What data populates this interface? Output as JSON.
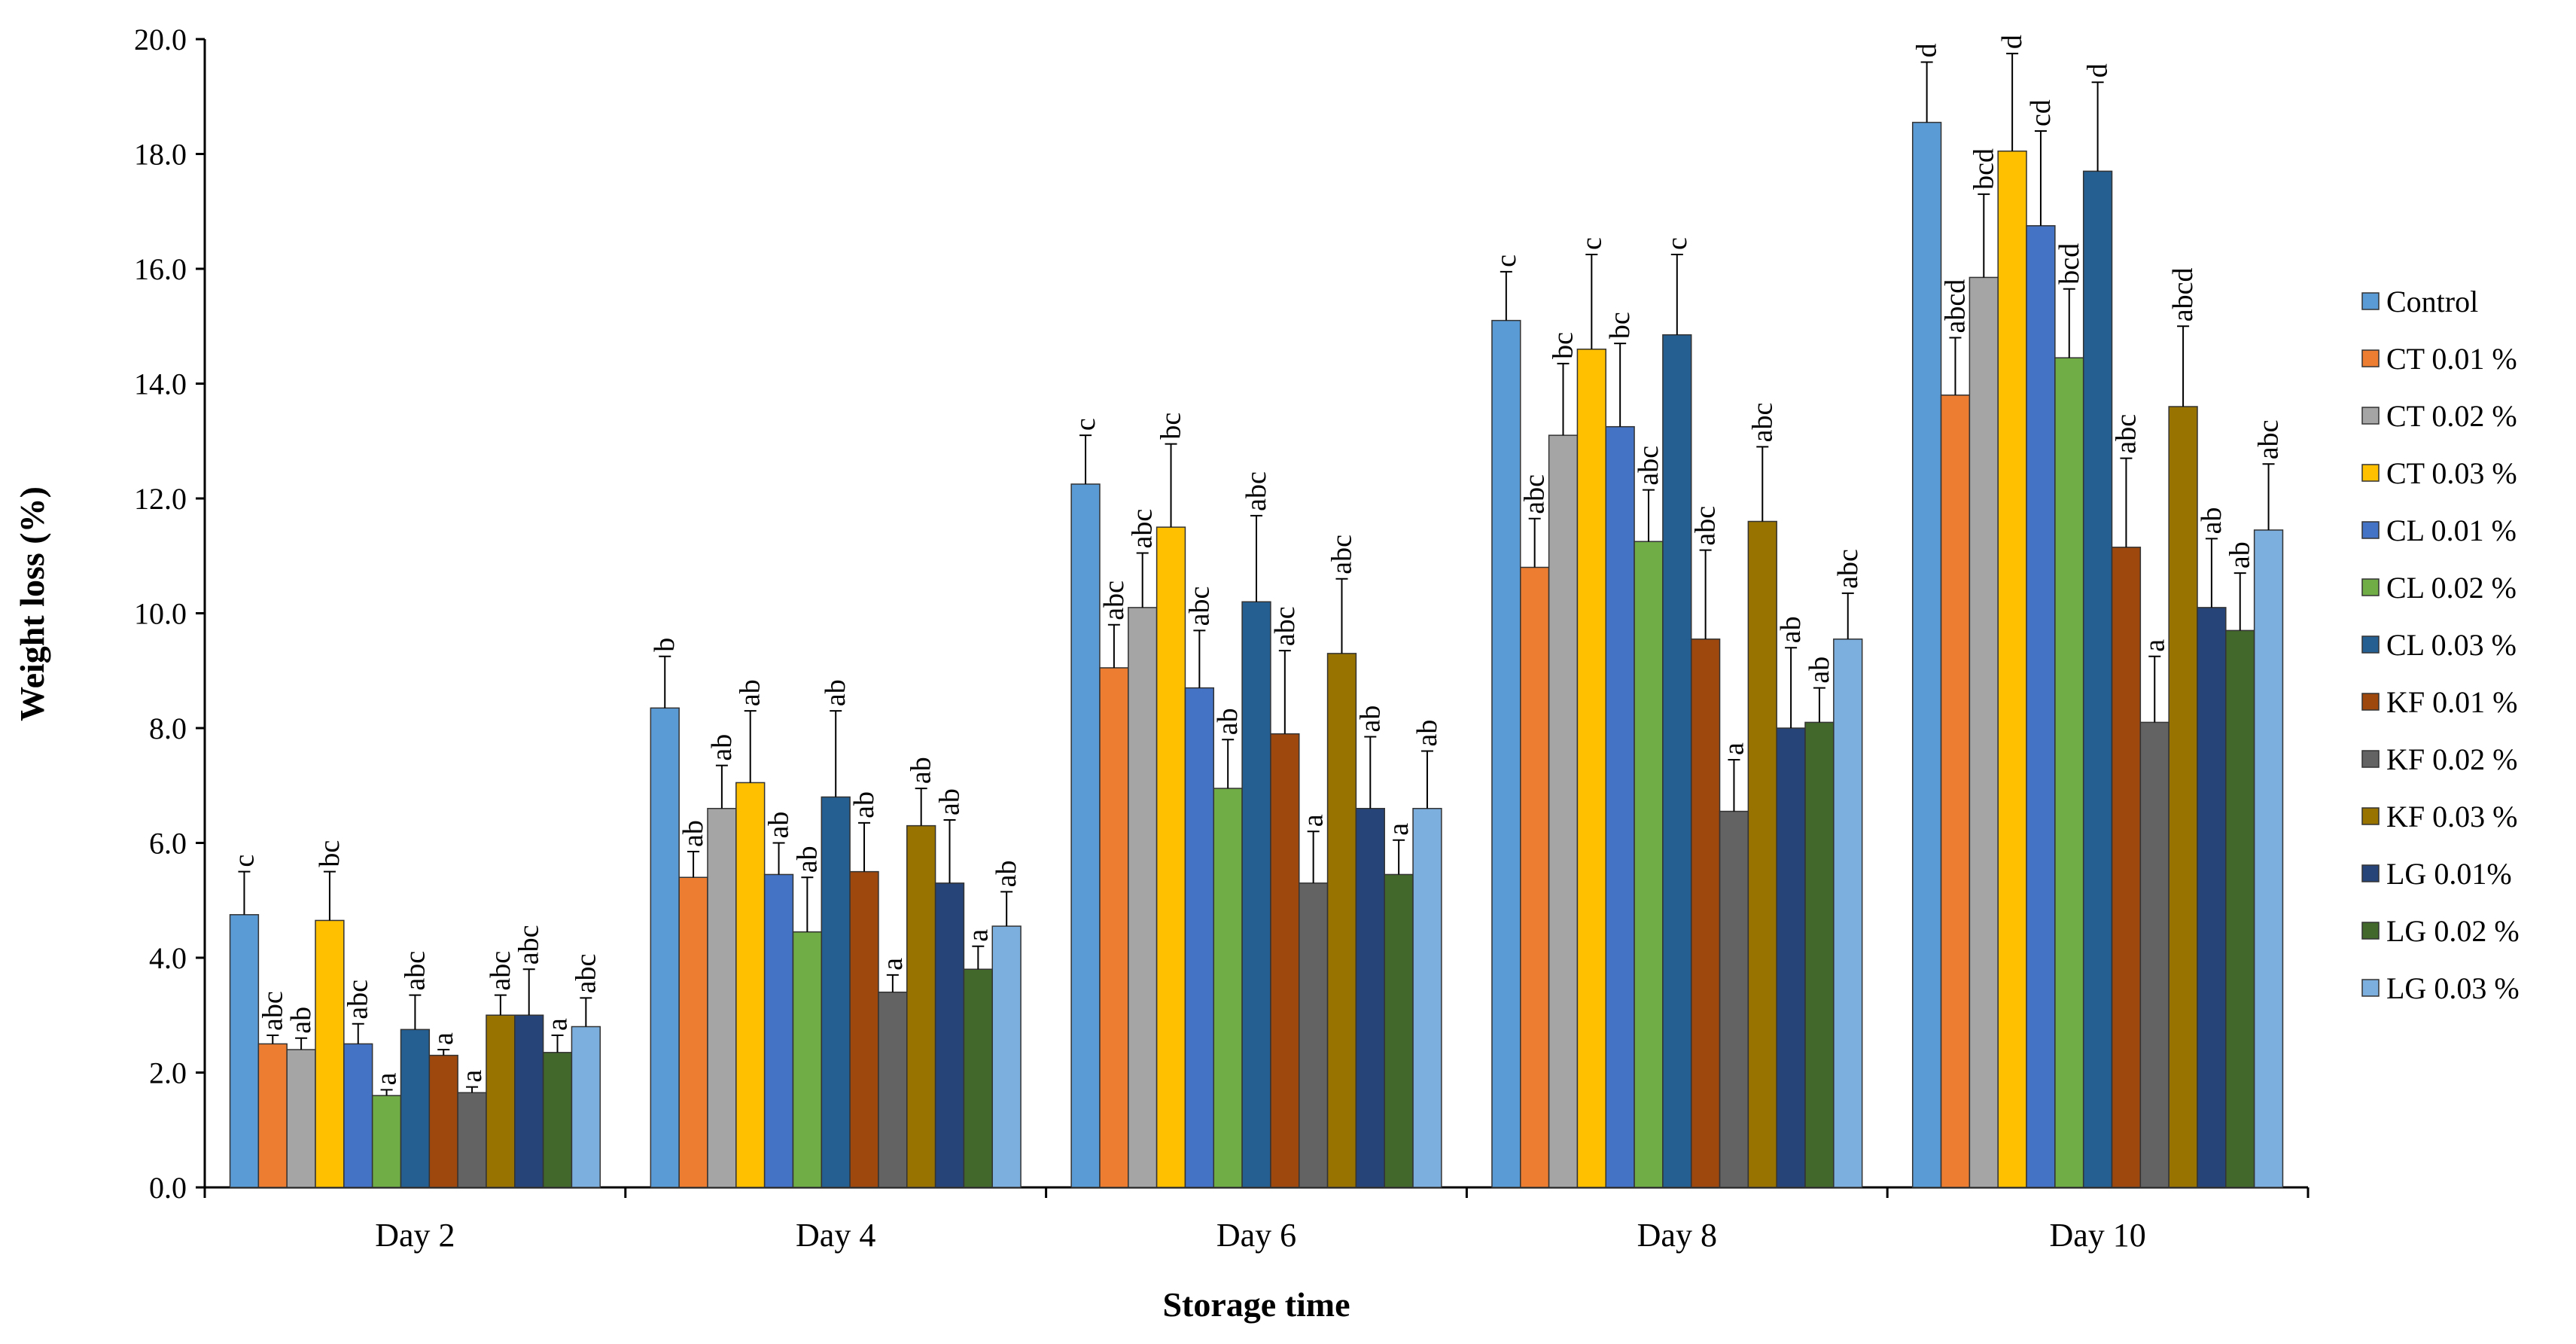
{
  "chart_data": {
    "type": "bar",
    "title": "",
    "xlabel": "Storage time",
    "ylabel": "Weight loss (%)",
    "ylim": [
      0,
      20
    ],
    "ytick_step": 2,
    "ytick_labels": [
      "0.0",
      "2.0",
      "4.0",
      "6.0",
      "8.0",
      "10.0",
      "12.0",
      "14.0",
      "16.0",
      "18.0",
      "20.0"
    ],
    "grid": false,
    "legend_position": "right",
    "categories": [
      "Day 2",
      "Day 4",
      "Day 6",
      "Day 8",
      "Day 10"
    ],
    "series": [
      {
        "name": "Control",
        "color": "#5B9BD5",
        "values": [
          4.75,
          8.35,
          12.25,
          15.1,
          18.55
        ],
        "errors": [
          0.75,
          0.9,
          0.85,
          0.85,
          1.05
        ],
        "labels": [
          "c",
          "b",
          "c",
          "c",
          "d"
        ]
      },
      {
        "name": "CT 0.01 %",
        "color": "#ED7D31",
        "values": [
          2.5,
          5.4,
          9.05,
          10.8,
          13.8
        ],
        "errors": [
          0.15,
          0.45,
          0.75,
          0.85,
          1.0
        ],
        "labels": [
          "abc",
          "ab",
          "abc",
          "abc",
          "abcd"
        ]
      },
      {
        "name": "CT 0.02 %",
        "color": "#A5A5A5",
        "values": [
          2.4,
          6.6,
          10.1,
          13.1,
          15.85
        ],
        "errors": [
          0.2,
          0.75,
          0.95,
          1.25,
          1.45
        ],
        "labels": [
          "ab",
          "ab",
          "abc",
          "bc",
          "bcd"
        ]
      },
      {
        "name": "CT 0.03 %",
        "color": "#FFC000",
        "values": [
          4.65,
          7.05,
          11.5,
          14.6,
          18.05
        ],
        "errors": [
          0.85,
          1.25,
          1.45,
          1.65,
          1.7
        ],
        "labels": [
          "bc",
          "ab",
          "bc",
          "c",
          "d"
        ]
      },
      {
        "name": "CL 0.01 %",
        "color": "#4472C4",
        "values": [
          2.5,
          5.45,
          8.7,
          13.25,
          16.75
        ],
        "errors": [
          0.35,
          0.55,
          1.0,
          1.45,
          1.65
        ],
        "labels": [
          "abc",
          "ab",
          "abc",
          "bc",
          "cd"
        ]
      },
      {
        "name": "CL 0.02 %",
        "color": "#70AD47",
        "values": [
          1.6,
          4.45,
          6.95,
          11.25,
          14.45
        ],
        "errors": [
          0.1,
          0.95,
          0.85,
          0.9,
          1.2
        ],
        "labels": [
          "a",
          "ab",
          "ab",
          "abc",
          "bcd"
        ]
      },
      {
        "name": "CL 0.03 %",
        "color": "#255E91",
        "values": [
          2.75,
          6.8,
          10.2,
          14.85,
          17.7
        ],
        "errors": [
          0.6,
          1.5,
          1.5,
          1.4,
          1.55
        ],
        "labels": [
          "abc",
          "ab",
          "abc",
          "c",
          "d"
        ]
      },
      {
        "name": "KF 0.01 %",
        "color": "#9E480E",
        "values": [
          2.3,
          5.5,
          7.9,
          9.55,
          11.15
        ],
        "errors": [
          0.1,
          0.85,
          1.45,
          1.55,
          1.55
        ],
        "labels": [
          "a",
          "ab",
          "abc",
          "abc",
          "abc"
        ]
      },
      {
        "name": "KF 0.02 %",
        "color": "#636363",
        "values": [
          1.65,
          3.4,
          5.3,
          6.55,
          8.1
        ],
        "errors": [
          0.1,
          0.3,
          0.9,
          0.9,
          1.15
        ],
        "labels": [
          "a",
          "a",
          "a",
          "a",
          "a"
        ]
      },
      {
        "name": "KF 0.03 %",
        "color": "#997300",
        "values": [
          3.0,
          6.3,
          9.3,
          11.6,
          13.6
        ],
        "errors": [
          0.35,
          0.65,
          1.3,
          1.3,
          1.4
        ],
        "labels": [
          "abc",
          "ab",
          "abc",
          "abc",
          "abcd"
        ]
      },
      {
        "name": "LG 0.01%",
        "color": "#264478",
        "values": [
          3.0,
          5.3,
          6.6,
          8.0,
          10.1
        ],
        "errors": [
          0.8,
          1.1,
          1.25,
          1.4,
          1.2
        ],
        "labels": [
          "abc",
          "ab",
          "ab",
          "ab",
          "ab"
        ]
      },
      {
        "name": "LG 0.02 %",
        "color": "#43682B",
        "values": [
          2.35,
          3.8,
          5.45,
          8.1,
          9.7
        ],
        "errors": [
          0.3,
          0.4,
          0.6,
          0.6,
          1.0
        ],
        "labels": [
          "a",
          "a",
          "a",
          "ab",
          "ab"
        ]
      },
      {
        "name": "LG 0.03 %",
        "color": "#7CAFDD",
        "values": [
          2.8,
          4.55,
          6.6,
          9.55,
          11.45
        ],
        "errors": [
          0.5,
          0.6,
          1.0,
          0.8,
          1.15
        ],
        "labels": [
          "abc",
          "ab",
          "ab",
          "abc",
          "abc"
        ]
      }
    ]
  }
}
